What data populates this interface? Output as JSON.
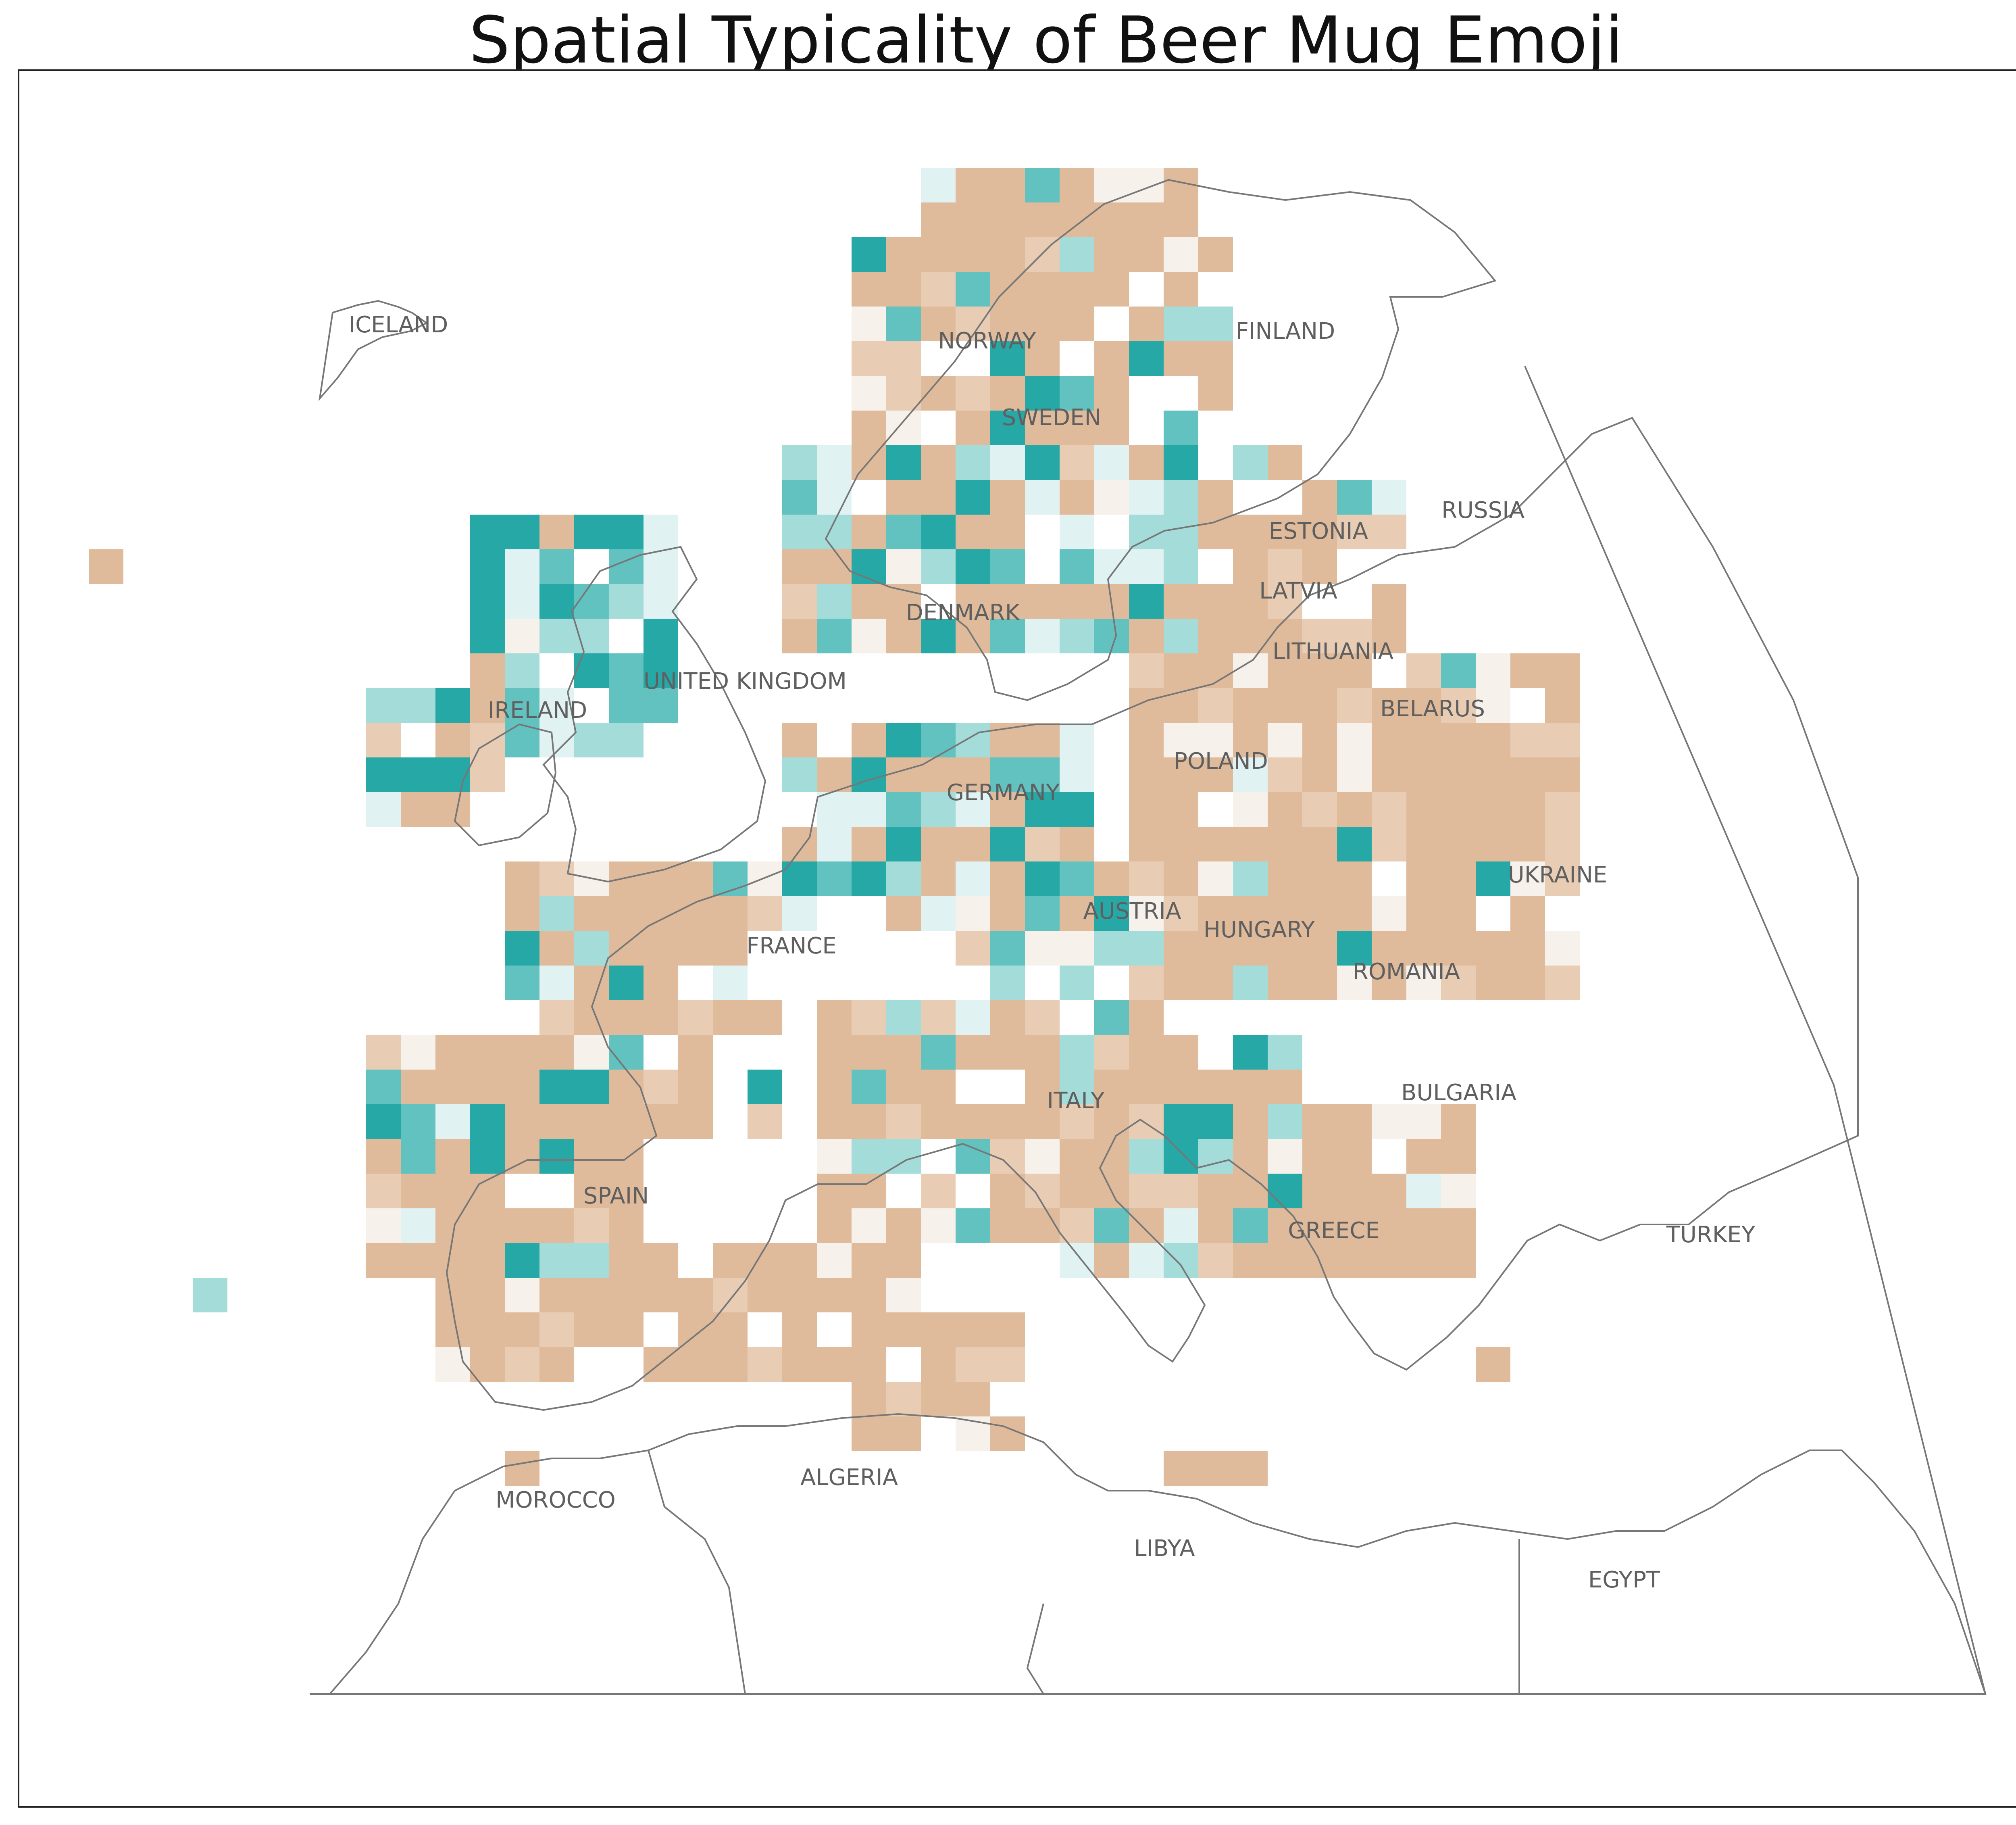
{
  "title": "Spatial Typicality of Beer Mug Emoji",
  "colors": {
    "low": "#dfbb9b",
    "low_light": "#e8cdb4",
    "neutral": "#f7f1ec",
    "neutral_cool": "#e1f2f2",
    "mid": "#a3dcd9",
    "high": "#62c2c0",
    "very_high": "#25a8a6",
    "border": "#777777"
  },
  "labels": [
    {
      "id": "iceland",
      "text": "ICELAND"
    },
    {
      "id": "norway",
      "text": "NORWAY"
    },
    {
      "id": "finland",
      "text": "FINLAND"
    },
    {
      "id": "sweden",
      "text": "SWEDEN"
    },
    {
      "id": "russia",
      "text": "RUSSIA"
    },
    {
      "id": "estonia",
      "text": "ESTONIA"
    },
    {
      "id": "latvia",
      "text": "LATVIA"
    },
    {
      "id": "denmark",
      "text": "DENMARK"
    },
    {
      "id": "lithuania",
      "text": "LITHUANIA"
    },
    {
      "id": "united_kingdom",
      "text": "UNITED KINGDOM"
    },
    {
      "id": "belarus",
      "text": "BELARUS"
    },
    {
      "id": "ireland",
      "text": "IRELAND"
    },
    {
      "id": "poland",
      "text": "POLAND"
    },
    {
      "id": "germany",
      "text": "GERMANY"
    },
    {
      "id": "ukraine",
      "text": "UKRAINE"
    },
    {
      "id": "austria",
      "text": "AUSTRIA"
    },
    {
      "id": "hungary",
      "text": "HUNGARY"
    },
    {
      "id": "france",
      "text": "FRANCE"
    },
    {
      "id": "romania",
      "text": "ROMANIA"
    },
    {
      "id": "bulgaria",
      "text": "BULGARIA"
    },
    {
      "id": "italy",
      "text": "ITALY"
    },
    {
      "id": "spain",
      "text": "SPAIN"
    },
    {
      "id": "greece",
      "text": "GREECE"
    },
    {
      "id": "turkey",
      "text": "TURKEY"
    },
    {
      "id": "morocco",
      "text": "MOROCCO"
    },
    {
      "id": "algeria",
      "text": "ALGERIA"
    },
    {
      "id": "libya",
      "text": "LIBYA"
    },
    {
      "id": "egypt",
      "text": "EGYPT"
    }
  ]
}
